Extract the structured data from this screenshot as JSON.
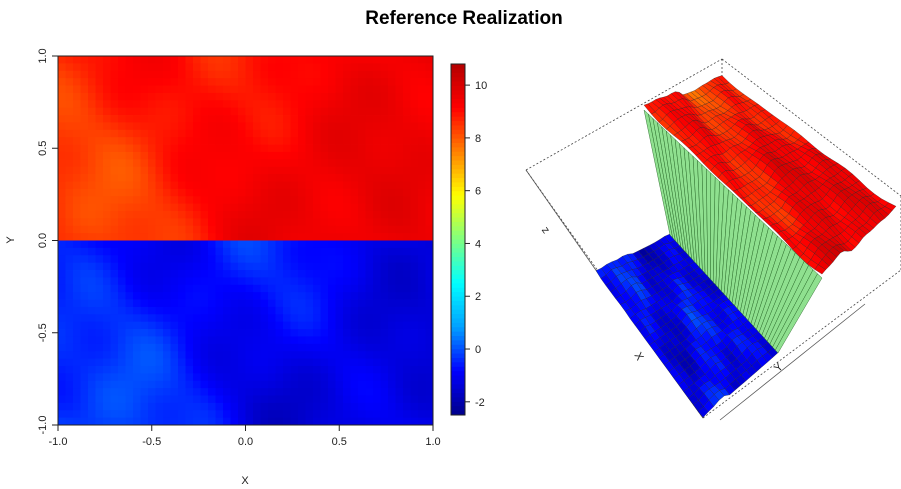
{
  "chart_data": [
    {
      "type": "heatmap",
      "title": "Reference Realization",
      "xlabel": "X",
      "ylabel": "Y",
      "xlim": [
        -1.0,
        1.0
      ],
      "ylim": [
        -1.0,
        1.0
      ],
      "x_ticks": [
        "-1.0",
        "-0.5",
        "0.0",
        "0.5",
        "1.0"
      ],
      "y_ticks": [
        "-1.0",
        "-0.5",
        "0.0",
        "0.5",
        "1.0"
      ],
      "grid_size": [
        50,
        50
      ],
      "value_range": [
        -2.5,
        10.8
      ],
      "upper_half_range": [
        7.5,
        10.8
      ],
      "lower_half_range": [
        -2.5,
        0.8
      ],
      "colorbar": {
        "ticks": [
          "-2",
          "0",
          "2",
          "4",
          "6",
          "8",
          "10"
        ],
        "palette": [
          "#00008b",
          "#0000ff",
          "#00a0ff",
          "#00ffff",
          "#80ff80",
          "#ffff00",
          "#ff8000",
          "#ff0000",
          "#b40000"
        ]
      },
      "grid": false
    },
    {
      "type": "area",
      "description_type": "3d-surface",
      "axis_labels": {
        "x": "X",
        "y": "Y",
        "z": "z"
      },
      "grid": false
    }
  ]
}
